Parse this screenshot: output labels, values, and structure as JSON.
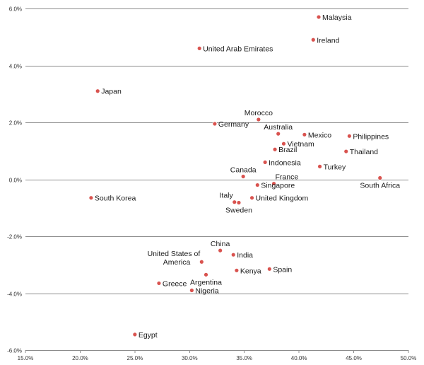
{
  "chart_data": {
    "type": "scatter",
    "title": "",
    "xlabel": "",
    "ylabel": "",
    "xlim": [
      0.15,
      0.5
    ],
    "ylim": [
      -0.06,
      0.06
    ],
    "x_ticks": [
      "15.0%",
      "20.0%",
      "25.0%",
      "30.0%",
      "35.0%",
      "40.0%",
      "45.0%",
      "50.0%"
    ],
    "y_ticks": [
      "6.0%",
      "4.0%",
      "2.0%",
      "0.0%",
      "-2.0%",
      "-4.0%",
      "-6.0%"
    ],
    "grid": "horizontal",
    "point_color": "#d9534f",
    "points": [
      {
        "label": "Malaysia",
        "x": 0.418,
        "y": 0.057,
        "anchor": "right"
      },
      {
        "label": "Ireland",
        "x": 0.413,
        "y": 0.049,
        "anchor": "right"
      },
      {
        "label": "United Arab Emirates",
        "x": 0.309,
        "y": 0.046,
        "anchor": "right"
      },
      {
        "label": "Japan",
        "x": 0.216,
        "y": 0.031,
        "anchor": "right"
      },
      {
        "label": "Morocco",
        "x": 0.363,
        "y": 0.021,
        "anchor": "above"
      },
      {
        "label": "Germany",
        "x": 0.323,
        "y": 0.0195,
        "anchor": "right"
      },
      {
        "label": "Australia",
        "x": 0.381,
        "y": 0.016,
        "anchor": "above"
      },
      {
        "label": "Mexico",
        "x": 0.405,
        "y": 0.0157,
        "anchor": "right"
      },
      {
        "label": "Philippines",
        "x": 0.446,
        "y": 0.0152,
        "anchor": "right"
      },
      {
        "label": "Vietnam",
        "x": 0.386,
        "y": 0.0125,
        "anchor": "right"
      },
      {
        "label": "Brazil",
        "x": 0.378,
        "y": 0.0105,
        "anchor": "right"
      },
      {
        "label": "Thailand",
        "x": 0.443,
        "y": 0.0098,
        "anchor": "right"
      },
      {
        "label": "Indonesia",
        "x": 0.369,
        "y": 0.006,
        "anchor": "right"
      },
      {
        "label": "Turkey",
        "x": 0.419,
        "y": 0.0045,
        "anchor": "right"
      },
      {
        "label": "Canada",
        "x": 0.349,
        "y": 0.001,
        "anchor": "above"
      },
      {
        "label": "France",
        "x": 0.377,
        "y": -0.0015,
        "anchor": "above-right"
      },
      {
        "label": "South Africa",
        "x": 0.474,
        "y": 0.0005,
        "anchor": "below"
      },
      {
        "label": "Singapore",
        "x": 0.362,
        "y": -0.002,
        "anchor": "right"
      },
      {
        "label": "South Korea",
        "x": 0.21,
        "y": -0.0065,
        "anchor": "right"
      },
      {
        "label": "United Kingdom",
        "x": 0.357,
        "y": -0.0065,
        "anchor": "right"
      },
      {
        "label": "Italy",
        "x": 0.341,
        "y": -0.008,
        "anchor": "above-left"
      },
      {
        "label": "Sweden",
        "x": 0.345,
        "y": -0.0082,
        "anchor": "below"
      },
      {
        "label": "China",
        "x": 0.328,
        "y": -0.025,
        "anchor": "above"
      },
      {
        "label": "India",
        "x": 0.34,
        "y": -0.0265,
        "anchor": "right"
      },
      {
        "label": "United States of America",
        "x": 0.311,
        "y": -0.029,
        "anchor": "left"
      },
      {
        "label": "Kenya",
        "x": 0.343,
        "y": -0.032,
        "anchor": "right"
      },
      {
        "label": "Spain",
        "x": 0.373,
        "y": -0.0315,
        "anchor": "right"
      },
      {
        "label": "Argentina",
        "x": 0.315,
        "y": -0.0335,
        "anchor": "below"
      },
      {
        "label": "Greece",
        "x": 0.272,
        "y": -0.0365,
        "anchor": "right"
      },
      {
        "label": "Nigeria",
        "x": 0.302,
        "y": -0.039,
        "anchor": "right"
      },
      {
        "label": "Egypt",
        "x": 0.25,
        "y": -0.0545,
        "anchor": "right"
      }
    ]
  }
}
